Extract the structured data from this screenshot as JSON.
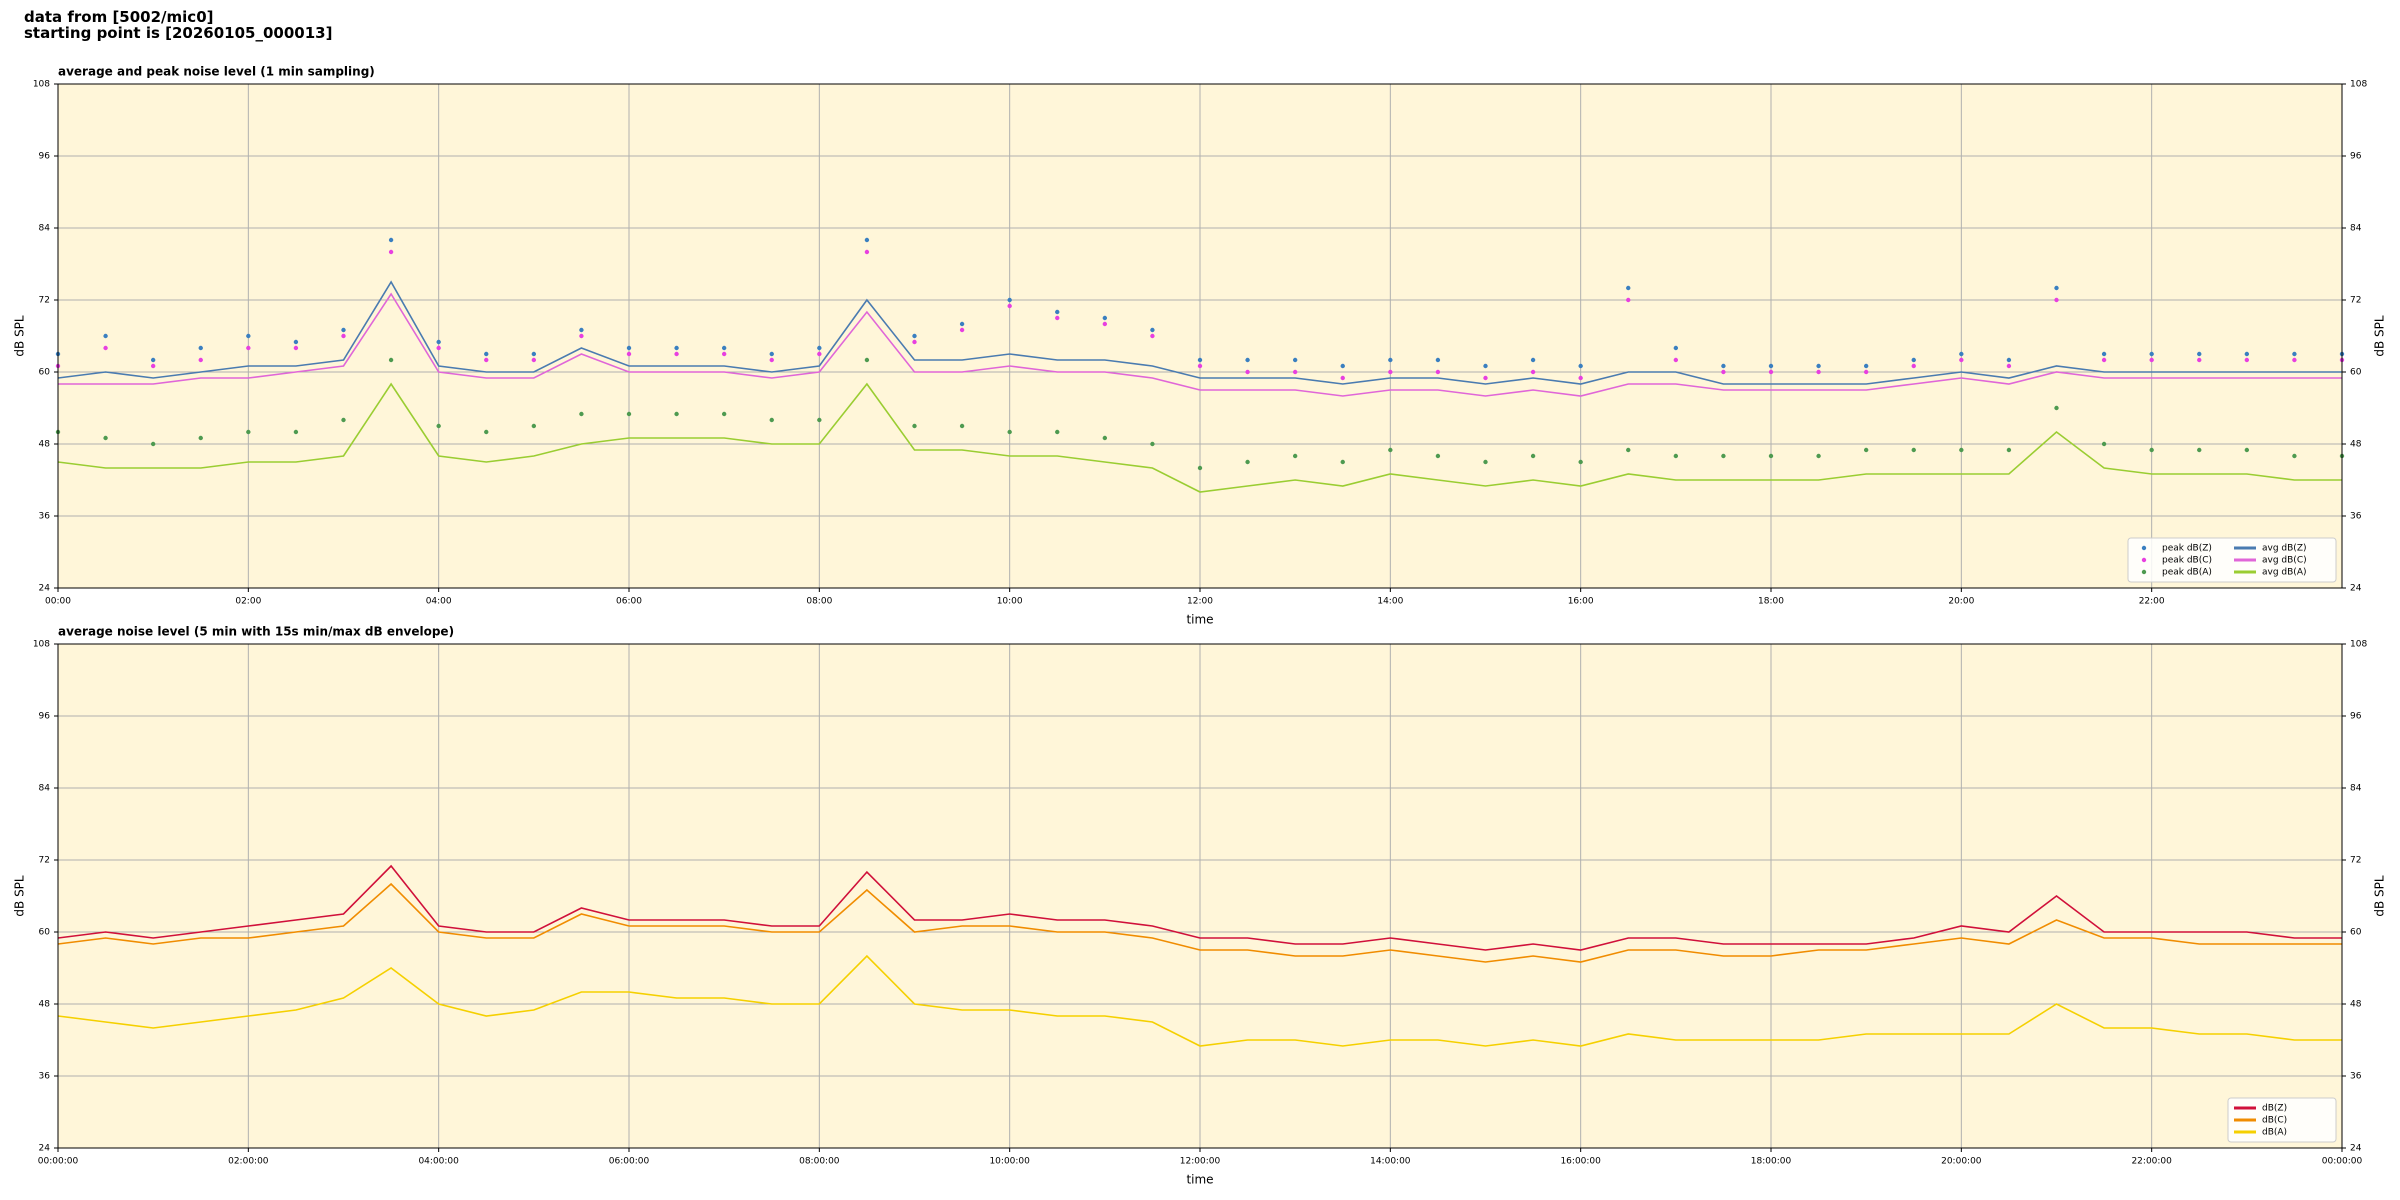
{
  "suptitle": [
    "data from [5002/mic0]",
    "starting point is [20260105_000013]"
  ],
  "chart_data": [
    {
      "type": "line",
      "title": "average and peak noise level (1 min sampling)",
      "xlabel": "time",
      "ylabel": "dB SPL",
      "xlim": [
        0,
        24
      ],
      "ylim": [
        24,
        108
      ],
      "yticks": [
        24,
        36,
        48,
        60,
        72,
        84,
        96,
        108
      ],
      "xticks": [
        {
          "value": 0,
          "label": "00:00"
        },
        {
          "value": 2,
          "label": "02:00"
        },
        {
          "value": 4,
          "label": "04:00"
        },
        {
          "value": 6,
          "label": "06:00"
        },
        {
          "value": 8,
          "label": "08:00"
        },
        {
          "value": 10,
          "label": "10:00"
        },
        {
          "value": 12,
          "label": "12:00"
        },
        {
          "value": 14,
          "label": "14:00"
        },
        {
          "value": 16,
          "label": "16:00"
        },
        {
          "value": 18,
          "label": "18:00"
        },
        {
          "value": 20,
          "label": "20:00"
        },
        {
          "value": 22,
          "label": "22:00"
        }
      ],
      "grid": true,
      "legend": "lower right",
      "legend_columns": 2,
      "background": "#fff6d9",
      "x": [
        0,
        0.5,
        1,
        1.5,
        2,
        2.5,
        3,
        3.5,
        4,
        4.5,
        5,
        5.5,
        6,
        6.5,
        7,
        7.5,
        8,
        8.5,
        9,
        9.5,
        10,
        10.5,
        11,
        11.5,
        12,
        12.5,
        13,
        13.5,
        14,
        14.5,
        15,
        15.5,
        16,
        16.5,
        17,
        17.5,
        18,
        18.5,
        19,
        19.5,
        20,
        20.5,
        21,
        21.5,
        22,
        22.5,
        23,
        23.5,
        24
      ],
      "series": [
        {
          "name": "peak dB(Z)",
          "kind": "scatter",
          "color": "#3a7fc0",
          "values": [
            63,
            66,
            62,
            64,
            66,
            65,
            67,
            82,
            65,
            63,
            63,
            67,
            64,
            64,
            64,
            63,
            64,
            82,
            66,
            68,
            72,
            70,
            69,
            67,
            62,
            62,
            62,
            61,
            62,
            62,
            61,
            62,
            61,
            74,
            64,
            61,
            61,
            61,
            61,
            62,
            63,
            62,
            74,
            63,
            63,
            63,
            63,
            63,
            63
          ]
        },
        {
          "name": "peak dB(C)",
          "kind": "scatter",
          "color": "#e83fe0",
          "values": [
            61,
            64,
            61,
            62,
            64,
            64,
            66,
            80,
            64,
            62,
            62,
            66,
            63,
            63,
            63,
            62,
            63,
            80,
            65,
            67,
            71,
            69,
            68,
            66,
            61,
            60,
            60,
            59,
            60,
            60,
            59,
            60,
            59,
            72,
            62,
            60,
            60,
            60,
            60,
            61,
            62,
            61,
            72,
            62,
            62,
            62,
            62,
            62,
            62
          ]
        },
        {
          "name": "peak dB(A)",
          "kind": "scatter",
          "color": "#4e9a50",
          "values": [
            50,
            49,
            48,
            49,
            50,
            50,
            52,
            62,
            51,
            50,
            51,
            53,
            53,
            53,
            53,
            52,
            52,
            62,
            51,
            51,
            50,
            50,
            49,
            48,
            44,
            45,
            46,
            45,
            47,
            46,
            45,
            46,
            45,
            47,
            46,
            46,
            46,
            46,
            47,
            47,
            47,
            47,
            54,
            48,
            47,
            47,
            47,
            46,
            46
          ]
        },
        {
          "name": "avg dB(Z)",
          "kind": "line",
          "color": "#4a7bb0",
          "values": [
            59,
            60,
            59,
            60,
            61,
            61,
            62,
            75,
            61,
            60,
            60,
            64,
            61,
            61,
            61,
            60,
            61,
            72,
            62,
            62,
            63,
            62,
            62,
            61,
            59,
            59,
            59,
            58,
            59,
            59,
            58,
            59,
            58,
            60,
            60,
            58,
            58,
            58,
            58,
            59,
            60,
            59,
            61,
            60,
            60,
            60,
            60,
            60,
            60
          ]
        },
        {
          "name": "avg dB(C)",
          "kind": "line",
          "color": "#e066d8",
          "values": [
            58,
            58,
            58,
            59,
            59,
            60,
            61,
            73,
            60,
            59,
            59,
            63,
            60,
            60,
            60,
            59,
            60,
            70,
            60,
            60,
            61,
            60,
            60,
            59,
            57,
            57,
            57,
            56,
            57,
            57,
            56,
            57,
            56,
            58,
            58,
            57,
            57,
            57,
            57,
            58,
            59,
            58,
            60,
            59,
            59,
            59,
            59,
            59,
            59
          ]
        },
        {
          "name": "avg dB(A)",
          "kind": "line",
          "color": "#9acd32",
          "values": [
            45,
            44,
            44,
            44,
            45,
            45,
            46,
            58,
            46,
            45,
            46,
            48,
            49,
            49,
            49,
            48,
            48,
            58,
            47,
            47,
            46,
            46,
            45,
            44,
            40,
            41,
            42,
            41,
            43,
            42,
            41,
            42,
            41,
            43,
            42,
            42,
            42,
            42,
            43,
            43,
            43,
            43,
            50,
            44,
            43,
            43,
            43,
            42,
            42
          ]
        }
      ]
    },
    {
      "type": "line",
      "title": "average noise level (5 min with 15s min/max dB envelope)",
      "xlabel": "time",
      "ylabel": "dB SPL",
      "xlim": [
        0,
        24
      ],
      "ylim": [
        24,
        108
      ],
      "yticks": [
        24,
        36,
        48,
        60,
        72,
        84,
        96,
        108
      ],
      "xticks": [
        {
          "value": 0,
          "label": "00:00:00"
        },
        {
          "value": 2,
          "label": "02:00:00"
        },
        {
          "value": 4,
          "label": "04:00:00"
        },
        {
          "value": 6,
          "label": "06:00:00"
        },
        {
          "value": 8,
          "label": "08:00:00"
        },
        {
          "value": 10,
          "label": "10:00:00"
        },
        {
          "value": 12,
          "label": "12:00:00"
        },
        {
          "value": 14,
          "label": "14:00:00"
        },
        {
          "value": 16,
          "label": "16:00:00"
        },
        {
          "value": 18,
          "label": "18:00:00"
        },
        {
          "value": 20,
          "label": "20:00:00"
        },
        {
          "value": 22,
          "label": "22:00:00"
        },
        {
          "value": 24,
          "label": "00:00:00"
        }
      ],
      "grid": true,
      "legend": "lower right",
      "legend_columns": 1,
      "background": "#fff6d9",
      "x": [
        0,
        0.5,
        1,
        1.5,
        2,
        2.5,
        3,
        3.5,
        4,
        4.5,
        5,
        5.5,
        6,
        6.5,
        7,
        7.5,
        8,
        8.5,
        9,
        9.5,
        10,
        10.5,
        11,
        11.5,
        12,
        12.5,
        13,
        13.5,
        14,
        14.5,
        15,
        15.5,
        16,
        16.5,
        17,
        17.5,
        18,
        18.5,
        19,
        19.5,
        20,
        20.5,
        21,
        21.5,
        22,
        22.5,
        23,
        23.5,
        24
      ],
      "series": [
        {
          "name": "dB(Z)",
          "kind": "line",
          "color": "#d0103a",
          "values": [
            59,
            60,
            59,
            60,
            61,
            62,
            63,
            71,
            61,
            60,
            60,
            64,
            62,
            62,
            62,
            61,
            61,
            70,
            62,
            62,
            63,
            62,
            62,
            61,
            59,
            59,
            58,
            58,
            59,
            58,
            57,
            58,
            57,
            59,
            59,
            58,
            58,
            58,
            58,
            59,
            61,
            60,
            66,
            60,
            60,
            60,
            60,
            59,
            59
          ]
        },
        {
          "name": "dB(C)",
          "kind": "line",
          "color": "#f08c00",
          "values": [
            58,
            59,
            58,
            59,
            59,
            60,
            61,
            68,
            60,
            59,
            59,
            63,
            61,
            61,
            61,
            60,
            60,
            67,
            60,
            61,
            61,
            60,
            60,
            59,
            57,
            57,
            56,
            56,
            57,
            56,
            55,
            56,
            55,
            57,
            57,
            56,
            56,
            57,
            57,
            58,
            59,
            58,
            62,
            59,
            59,
            58,
            58,
            58,
            58
          ]
        },
        {
          "name": "dB(A)",
          "kind": "line",
          "color": "#f5d000",
          "values": [
            46,
            45,
            44,
            45,
            46,
            47,
            49,
            54,
            48,
            46,
            47,
            50,
            50,
            49,
            49,
            48,
            48,
            56,
            48,
            47,
            47,
            46,
            46,
            45,
            41,
            42,
            42,
            41,
            42,
            42,
            41,
            42,
            41,
            43,
            42,
            42,
            42,
            42,
            43,
            43,
            43,
            43,
            48,
            44,
            44,
            43,
            43,
            42,
            42
          ]
        }
      ]
    }
  ]
}
